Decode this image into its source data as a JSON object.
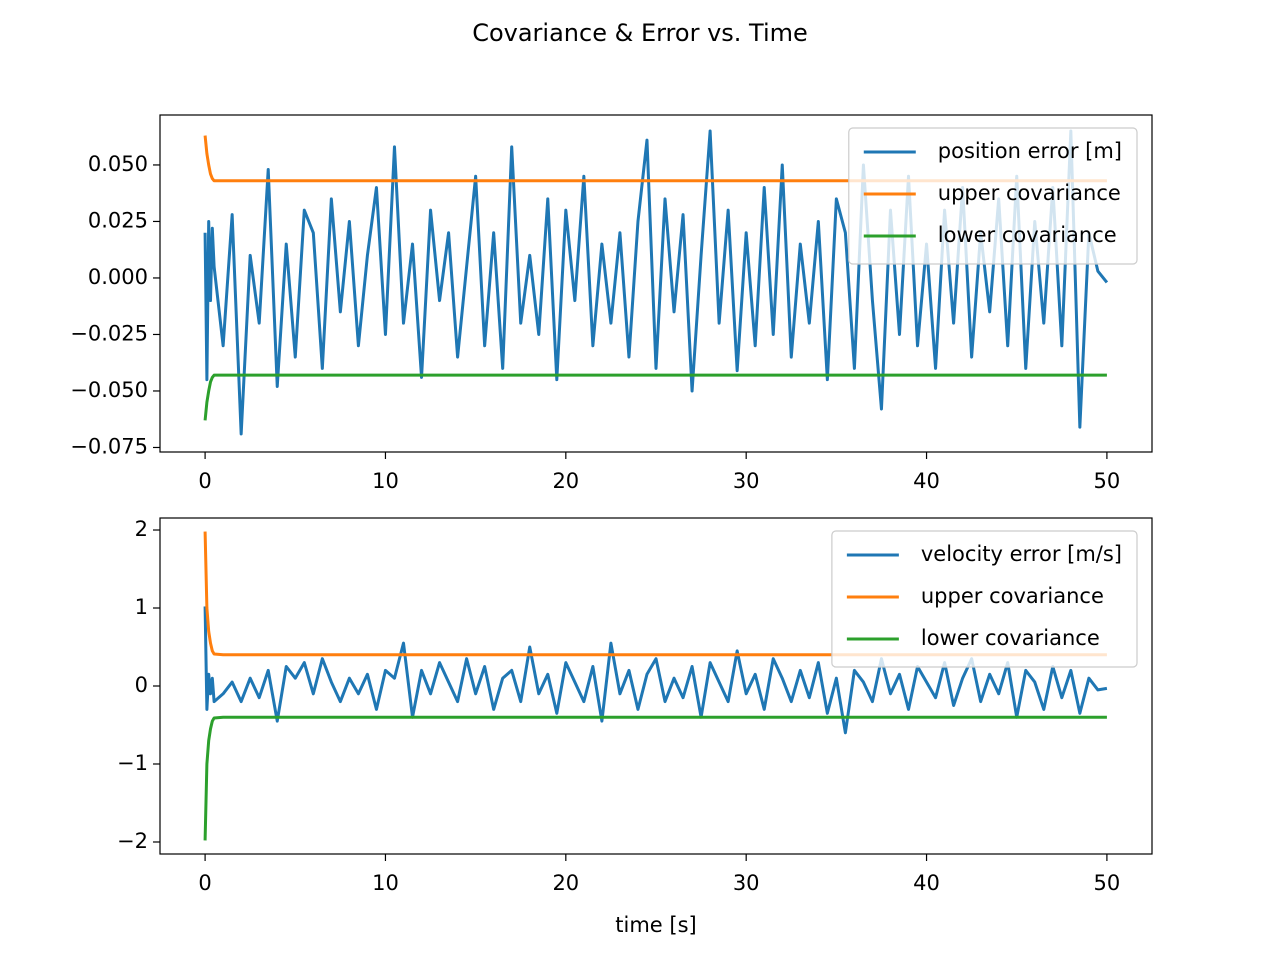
{
  "title": "Covariance & Error vs. Time",
  "chart_data": [
    {
      "type": "line",
      "x": [
        0,
        0.1,
        0.2,
        0.3,
        0.4,
        0.5,
        1,
        1.5,
        2,
        2.5,
        3,
        3.5,
        4,
        4.5,
        5,
        5.5,
        6,
        6.5,
        7,
        7.5,
        8,
        8.5,
        9,
        9.5,
        10,
        10.5,
        11,
        11.5,
        12,
        12.5,
        13,
        13.5,
        14,
        14.5,
        15,
        15.5,
        16,
        16.5,
        17,
        17.5,
        18,
        18.5,
        19,
        19.5,
        20,
        20.5,
        21,
        21.5,
        22,
        22.5,
        23,
        23.5,
        24,
        24.5,
        25,
        25.5,
        26,
        26.5,
        27,
        27.5,
        28,
        28.5,
        29,
        29.5,
        30,
        30.5,
        31,
        31.5,
        32,
        32.5,
        33,
        33.5,
        34,
        34.5,
        35,
        35.5,
        36,
        36.5,
        37,
        37.5,
        38,
        38.5,
        39,
        39.5,
        40,
        40.5,
        41,
        41.5,
        42,
        42.5,
        43,
        43.5,
        44,
        44.5,
        45,
        45.5,
        46,
        46.5,
        47,
        47.5,
        48,
        48.5,
        49,
        49.5,
        50
      ],
      "series": [
        {
          "name": "position error [m]",
          "color": "#1f77b4",
          "values": [
            0.02,
            -0.045,
            0.025,
            -0.01,
            0.022,
            0.005,
            -0.03,
            0.028,
            -0.069,
            0.01,
            -0.02,
            0.048,
            -0.048,
            0.015,
            -0.035,
            0.03,
            0.02,
            -0.04,
            0.035,
            -0.015,
            0.025,
            -0.03,
            0.01,
            0.04,
            -0.025,
            0.058,
            -0.02,
            0.015,
            -0.044,
            0.03,
            -0.01,
            0.02,
            -0.035,
            0.005,
            0.045,
            -0.03,
            0.02,
            -0.04,
            0.058,
            -0.02,
            0.01,
            -0.025,
            0.035,
            -0.045,
            0.03,
            -0.01,
            0.045,
            -0.03,
            0.015,
            -0.02,
            0.02,
            -0.035,
            0.025,
            0.061,
            -0.04,
            0.035,
            -0.015,
            0.028,
            -0.05,
            0.01,
            0.065,
            -0.02,
            0.03,
            -0.041,
            0.02,
            -0.03,
            0.04,
            -0.025,
            0.05,
            -0.035,
            0.015,
            -0.02,
            0.025,
            -0.045,
            0.035,
            0.02,
            -0.04,
            0.05,
            -0.01,
            -0.058,
            0.03,
            -0.025,
            0.045,
            -0.03,
            0.015,
            -0.04,
            0.03,
            -0.02,
            0.04,
            -0.035,
            0.02,
            -0.015,
            0.035,
            -0.03,
            0.045,
            -0.04,
            0.025,
            -0.02,
            0.04,
            -0.03,
            0.065,
            -0.066,
            0.02,
            0.003,
            -0.002
          ]
        },
        {
          "name": "upper covariance",
          "color": "#ff7f0e",
          "values": [
            0.063,
            0.055,
            0.05,
            0.046,
            0.044,
            0.043,
            0.043,
            0.043,
            0.043,
            0.043,
            0.043,
            0.043,
            0.043,
            0.043,
            0.043,
            0.043,
            0.043,
            0.043,
            0.043,
            0.043,
            0.043,
            0.043,
            0.043,
            0.043,
            0.043,
            0.043,
            0.043,
            0.043,
            0.043,
            0.043,
            0.043,
            0.043,
            0.043,
            0.043,
            0.043,
            0.043,
            0.043,
            0.043,
            0.043,
            0.043,
            0.043,
            0.043,
            0.043,
            0.043,
            0.043,
            0.043,
            0.043,
            0.043,
            0.043,
            0.043,
            0.043,
            0.043,
            0.043,
            0.043,
            0.043,
            0.043,
            0.043,
            0.043,
            0.043,
            0.043,
            0.043,
            0.043,
            0.043,
            0.043,
            0.043,
            0.043,
            0.043,
            0.043,
            0.043,
            0.043,
            0.043,
            0.043,
            0.043,
            0.043,
            0.043,
            0.043,
            0.043,
            0.043,
            0.043,
            0.043,
            0.043,
            0.043,
            0.043,
            0.043,
            0.043,
            0.043,
            0.043,
            0.043,
            0.043,
            0.043,
            0.043,
            0.043,
            0.043,
            0.043,
            0.043,
            0.043,
            0.043,
            0.043,
            0.043,
            0.043,
            0.043,
            0.043,
            0.043,
            0.043,
            0.043
          ]
        },
        {
          "name": "lower covariance",
          "color": "#2ca02c",
          "values": [
            -0.063,
            -0.055,
            -0.05,
            -0.046,
            -0.044,
            -0.043,
            -0.043,
            -0.043,
            -0.043,
            -0.043,
            -0.043,
            -0.043,
            -0.043,
            -0.043,
            -0.043,
            -0.043,
            -0.043,
            -0.043,
            -0.043,
            -0.043,
            -0.043,
            -0.043,
            -0.043,
            -0.043,
            -0.043,
            -0.043,
            -0.043,
            -0.043,
            -0.043,
            -0.043,
            -0.043,
            -0.043,
            -0.043,
            -0.043,
            -0.043,
            -0.043,
            -0.043,
            -0.043,
            -0.043,
            -0.043,
            -0.043,
            -0.043,
            -0.043,
            -0.043,
            -0.043,
            -0.043,
            -0.043,
            -0.043,
            -0.043,
            -0.043,
            -0.043,
            -0.043,
            -0.043,
            -0.043,
            -0.043,
            -0.043,
            -0.043,
            -0.043,
            -0.043,
            -0.043,
            -0.043,
            -0.043,
            -0.043,
            -0.043,
            -0.043,
            -0.043,
            -0.043,
            -0.043,
            -0.043,
            -0.043,
            -0.043,
            -0.043,
            -0.043,
            -0.043,
            -0.043,
            -0.043,
            -0.043,
            -0.043,
            -0.043,
            -0.043,
            -0.043,
            -0.043,
            -0.043,
            -0.043,
            -0.043,
            -0.043,
            -0.043,
            -0.043,
            -0.043,
            -0.043,
            -0.043,
            -0.043,
            -0.043,
            -0.043,
            -0.043,
            -0.043,
            -0.043,
            -0.043,
            -0.043,
            -0.043,
            -0.043,
            -0.043,
            -0.043,
            -0.043,
            -0.043
          ]
        }
      ],
      "xlim": [
        -2.5,
        52.5
      ],
      "xticks": [
        0,
        10,
        20,
        30,
        40,
        50
      ],
      "ylim": [
        -0.077,
        0.0721
      ],
      "yticks": [
        {
          "value": -0.075,
          "label": "−0.075"
        },
        {
          "value": -0.05,
          "label": "−0.050"
        },
        {
          "value": -0.025,
          "label": "−0.025"
        },
        {
          "value": 0,
          "label": "0.000"
        },
        {
          "value": 0.025,
          "label": "0.025"
        },
        {
          "value": 0.05,
          "label": "0.050"
        }
      ],
      "legend": "upper right"
    },
    {
      "type": "line",
      "xlabel": "time [s]",
      "x": [
        0,
        0.1,
        0.2,
        0.3,
        0.4,
        0.5,
        1,
        1.5,
        2,
        2.5,
        3,
        3.5,
        4,
        4.5,
        5,
        5.5,
        6,
        6.5,
        7,
        7.5,
        8,
        8.5,
        9,
        9.5,
        10,
        10.5,
        11,
        11.5,
        12,
        12.5,
        13,
        13.5,
        14,
        14.5,
        15,
        15.5,
        16,
        16.5,
        17,
        17.5,
        18,
        18.5,
        19,
        19.5,
        20,
        20.5,
        21,
        21.5,
        22,
        22.5,
        23,
        23.5,
        24,
        24.5,
        25,
        25.5,
        26,
        26.5,
        27,
        27.5,
        28,
        28.5,
        29,
        29.5,
        30,
        30.5,
        31,
        31.5,
        32,
        32.5,
        33,
        33.5,
        34,
        34.5,
        35,
        35.5,
        36,
        36.5,
        37,
        37.5,
        38,
        38.5,
        39,
        39.5,
        40,
        40.5,
        41,
        41.5,
        42,
        42.5,
        43,
        43.5,
        44,
        44.5,
        45,
        45.5,
        46,
        46.5,
        47,
        47.5,
        48,
        48.5,
        49,
        49.5,
        50
      ],
      "series": [
        {
          "name": "velocity error [m/s]",
          "color": "#1f77b4",
          "values": [
            1.02,
            -0.3,
            0.15,
            -0.1,
            0.1,
            -0.2,
            -0.1,
            0.05,
            -0.2,
            0.1,
            -0.15,
            0.2,
            -0.45,
            0.25,
            0.1,
            0.3,
            -0.1,
            0.35,
            0.05,
            -0.2,
            0.1,
            -0.1,
            0.15,
            -0.3,
            0.2,
            0.1,
            0.55,
            -0.4,
            0.2,
            -0.1,
            0.3,
            0.05,
            -0.2,
            0.35,
            -0.1,
            0.25,
            -0.3,
            0.1,
            0.2,
            -0.2,
            0.5,
            -0.1,
            0.15,
            -0.35,
            0.3,
            0.05,
            -0.2,
            0.25,
            -0.45,
            0.55,
            -0.1,
            0.2,
            -0.3,
            0.15,
            0.35,
            -0.2,
            0.1,
            -0.15,
            0.25,
            -0.4,
            0.3,
            0.05,
            -0.2,
            0.45,
            -0.1,
            0.15,
            -0.3,
            0.35,
            0.1,
            -0.2,
            0.2,
            -0.15,
            0.3,
            -0.35,
            0.1,
            -0.6,
            0.2,
            0.05,
            -0.2,
            0.35,
            -0.1,
            0.15,
            -0.3,
            0.25,
            0.05,
            -0.15,
            0.3,
            -0.25,
            0.1,
            0.35,
            -0.2,
            0.15,
            -0.1,
            0.3,
            -0.4,
            0.2,
            0.05,
            -0.3,
            0.25,
            -0.15,
            0.2,
            -0.35,
            0.1,
            -0.05,
            -0.03
          ]
        },
        {
          "name": "upper covariance",
          "color": "#ff7f0e",
          "values": [
            1.98,
            1.0,
            0.7,
            0.55,
            0.45,
            0.41,
            0.4,
            0.4,
            0.4,
            0.4,
            0.4,
            0.4,
            0.4,
            0.4,
            0.4,
            0.4,
            0.4,
            0.4,
            0.4,
            0.4,
            0.4,
            0.4,
            0.4,
            0.4,
            0.4,
            0.4,
            0.4,
            0.4,
            0.4,
            0.4,
            0.4,
            0.4,
            0.4,
            0.4,
            0.4,
            0.4,
            0.4,
            0.4,
            0.4,
            0.4,
            0.4,
            0.4,
            0.4,
            0.4,
            0.4,
            0.4,
            0.4,
            0.4,
            0.4,
            0.4,
            0.4,
            0.4,
            0.4,
            0.4,
            0.4,
            0.4,
            0.4,
            0.4,
            0.4,
            0.4,
            0.4,
            0.4,
            0.4,
            0.4,
            0.4,
            0.4,
            0.4,
            0.4,
            0.4,
            0.4,
            0.4,
            0.4,
            0.4,
            0.4,
            0.4,
            0.4,
            0.4,
            0.4,
            0.4,
            0.4,
            0.4,
            0.4,
            0.4,
            0.4,
            0.4,
            0.4,
            0.4,
            0.4,
            0.4,
            0.4,
            0.4,
            0.4,
            0.4,
            0.4,
            0.4,
            0.4,
            0.4,
            0.4,
            0.4,
            0.4,
            0.4,
            0.4,
            0.4,
            0.4,
            0.4
          ]
        },
        {
          "name": "lower covariance",
          "color": "#2ca02c",
          "values": [
            -1.98,
            -1.0,
            -0.7,
            -0.55,
            -0.45,
            -0.41,
            -0.4,
            -0.4,
            -0.4,
            -0.4,
            -0.4,
            -0.4,
            -0.4,
            -0.4,
            -0.4,
            -0.4,
            -0.4,
            -0.4,
            -0.4,
            -0.4,
            -0.4,
            -0.4,
            -0.4,
            -0.4,
            -0.4,
            -0.4,
            -0.4,
            -0.4,
            -0.4,
            -0.4,
            -0.4,
            -0.4,
            -0.4,
            -0.4,
            -0.4,
            -0.4,
            -0.4,
            -0.4,
            -0.4,
            -0.4,
            -0.4,
            -0.4,
            -0.4,
            -0.4,
            -0.4,
            -0.4,
            -0.4,
            -0.4,
            -0.4,
            -0.4,
            -0.4,
            -0.4,
            -0.4,
            -0.4,
            -0.4,
            -0.4,
            -0.4,
            -0.4,
            -0.4,
            -0.4,
            -0.4,
            -0.4,
            -0.4,
            -0.4,
            -0.4,
            -0.4,
            -0.4,
            -0.4,
            -0.4,
            -0.4,
            -0.4,
            -0.4,
            -0.4,
            -0.4,
            -0.4,
            -0.4,
            -0.4,
            -0.4,
            -0.4,
            -0.4,
            -0.4,
            -0.4,
            -0.4,
            -0.4,
            -0.4,
            -0.4,
            -0.4,
            -0.4,
            -0.4,
            -0.4,
            -0.4,
            -0.4,
            -0.4,
            -0.4,
            -0.4,
            -0.4,
            -0.4,
            -0.4,
            -0.4,
            -0.4,
            -0.4,
            -0.4,
            -0.4,
            -0.4,
            -0.4
          ]
        }
      ],
      "xlim": [
        -2.5,
        52.5
      ],
      "xticks": [
        0,
        10,
        20,
        30,
        40,
        50
      ],
      "ylim": [
        -2.154,
        2.154
      ],
      "yticks": [
        {
          "value": -2,
          "label": "−2"
        },
        {
          "value": -1,
          "label": "−1"
        },
        0,
        1,
        2
      ],
      "legend": "upper right"
    }
  ]
}
